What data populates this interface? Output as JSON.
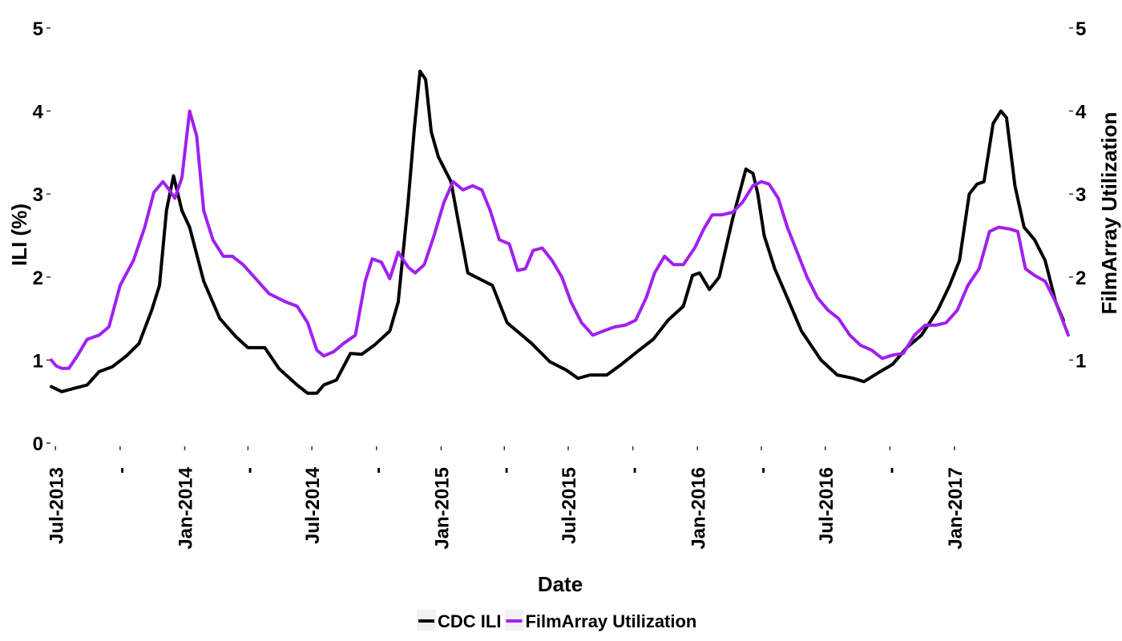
{
  "chart_data": {
    "type": "line",
    "xlabel": "Date",
    "ylabel": "ILI (%)",
    "y2label": "FilmArray Utilization",
    "ylim": [
      0,
      5
    ],
    "y2lim": [
      0,
      5
    ],
    "yticks": [
      "0",
      "1",
      "2",
      "3",
      "4",
      "5"
    ],
    "y2ticks": [
      "1",
      "2",
      "3",
      "4",
      "5"
    ],
    "xlim": [
      "2013-06-25",
      "2017-06-12"
    ],
    "xticks": [
      {
        "date": "2013-07-01",
        "label": "Jul-2013"
      },
      {
        "date": "2013-10-01",
        "label": "-"
      },
      {
        "date": "2014-01-01",
        "label": "Jan-2014"
      },
      {
        "date": "2014-04-01",
        "label": "-"
      },
      {
        "date": "2014-07-01",
        "label": "Jul-2014"
      },
      {
        "date": "2014-10-01",
        "label": "-"
      },
      {
        "date": "2015-01-01",
        "label": "Jan-2015"
      },
      {
        "date": "2015-04-01",
        "label": "-"
      },
      {
        "date": "2015-07-01",
        "label": "Jul-2015"
      },
      {
        "date": "2015-10-01",
        "label": "-"
      },
      {
        "date": "2016-01-01",
        "label": "Jan-2016"
      },
      {
        "date": "2016-04-01",
        "label": "-"
      },
      {
        "date": "2016-07-01",
        "label": "Jul-2016"
      },
      {
        "date": "2016-10-01",
        "label": "-"
      },
      {
        "date": "2017-01-01",
        "label": "Jan-2017"
      }
    ],
    "grid": false,
    "legend_position": "bottom",
    "series": [
      {
        "name": "CDC ILI",
        "color": "#000000",
        "axis": "left",
        "points": [
          [
            "2013-06-25",
            0.68
          ],
          [
            "2013-07-10",
            0.62
          ],
          [
            "2013-07-28",
            0.66
          ],
          [
            "2013-08-15",
            0.7
          ],
          [
            "2013-09-01",
            0.86
          ],
          [
            "2013-09-20",
            0.92
          ],
          [
            "2013-10-10",
            1.05
          ],
          [
            "2013-10-28",
            1.2
          ],
          [
            "2013-11-15",
            1.6
          ],
          [
            "2013-11-26",
            1.9
          ],
          [
            "2013-12-06",
            2.8
          ],
          [
            "2013-12-16",
            3.22
          ],
          [
            "2013-12-28",
            2.8
          ],
          [
            "2014-01-08",
            2.6
          ],
          [
            "2014-01-28",
            1.95
          ],
          [
            "2014-02-20",
            1.5
          ],
          [
            "2014-03-15",
            1.28
          ],
          [
            "2014-04-01",
            1.15
          ],
          [
            "2014-04-25",
            1.15
          ],
          [
            "2014-05-15",
            0.9
          ],
          [
            "2014-06-10",
            0.7
          ],
          [
            "2014-06-25",
            0.6
          ],
          [
            "2014-07-08",
            0.6
          ],
          [
            "2014-07-18",
            0.7
          ],
          [
            "2014-08-05",
            0.76
          ],
          [
            "2014-08-25",
            1.08
          ],
          [
            "2014-09-10",
            1.07
          ],
          [
            "2014-09-28",
            1.18
          ],
          [
            "2014-10-20",
            1.35
          ],
          [
            "2014-11-01",
            1.7
          ],
          [
            "2014-11-15",
            2.9
          ],
          [
            "2014-11-24",
            3.8
          ],
          [
            "2014-12-02",
            4.48
          ],
          [
            "2014-12-10",
            4.38
          ],
          [
            "2014-12-18",
            3.75
          ],
          [
            "2014-12-28",
            3.45
          ],
          [
            "2015-01-15",
            3.15
          ],
          [
            "2015-02-08",
            2.05
          ],
          [
            "2015-03-15",
            1.9
          ],
          [
            "2015-04-05",
            1.45
          ],
          [
            "2015-05-10",
            1.2
          ],
          [
            "2015-06-05",
            0.98
          ],
          [
            "2015-06-28",
            0.88
          ],
          [
            "2015-07-15",
            0.78
          ],
          [
            "2015-08-01",
            0.82
          ],
          [
            "2015-08-25",
            0.82
          ],
          [
            "2015-09-15",
            0.95
          ],
          [
            "2015-10-10",
            1.12
          ],
          [
            "2015-10-30",
            1.25
          ],
          [
            "2015-11-20",
            1.48
          ],
          [
            "2015-12-12",
            1.65
          ],
          [
            "2015-12-25",
            2.02
          ],
          [
            "2016-01-04",
            2.05
          ],
          [
            "2016-01-18",
            1.85
          ],
          [
            "2016-02-01",
            2.0
          ],
          [
            "2016-02-20",
            2.7
          ],
          [
            "2016-03-10",
            3.3
          ],
          [
            "2016-03-20",
            3.25
          ],
          [
            "2016-03-27",
            3.0
          ],
          [
            "2016-04-05",
            2.5
          ],
          [
            "2016-04-20",
            2.1
          ],
          [
            "2016-05-08",
            1.75
          ],
          [
            "2016-05-28",
            1.35
          ],
          [
            "2016-06-25",
            1.0
          ],
          [
            "2016-07-18",
            0.82
          ],
          [
            "2016-08-10",
            0.78
          ],
          [
            "2016-08-25",
            0.74
          ],
          [
            "2016-09-15",
            0.85
          ],
          [
            "2016-10-05",
            0.95
          ],
          [
            "2016-10-25",
            1.15
          ],
          [
            "2016-11-15",
            1.3
          ],
          [
            "2016-12-08",
            1.6
          ],
          [
            "2016-12-25",
            1.9
          ],
          [
            "2017-01-08",
            2.2
          ],
          [
            "2017-01-22",
            3.0
          ],
          [
            "2017-02-02",
            3.12
          ],
          [
            "2017-02-12",
            3.15
          ],
          [
            "2017-02-25",
            3.85
          ],
          [
            "2017-03-08",
            4.0
          ],
          [
            "2017-03-16",
            3.92
          ],
          [
            "2017-03-28",
            3.1
          ],
          [
            "2017-04-10",
            2.6
          ],
          [
            "2017-04-25",
            2.45
          ],
          [
            "2017-05-10",
            2.2
          ],
          [
            "2017-05-25",
            1.7
          ],
          [
            "2017-06-05",
            1.48
          ]
        ]
      },
      {
        "name": "FilmArray Utilization",
        "color": "#a020f0",
        "axis": "right",
        "points": [
          [
            "2013-06-25",
            1.0
          ],
          [
            "2013-07-02",
            0.93
          ],
          [
            "2013-07-10",
            0.9
          ],
          [
            "2013-07-20",
            0.9
          ],
          [
            "2013-08-01",
            1.05
          ],
          [
            "2013-08-15",
            1.25
          ],
          [
            "2013-09-01",
            1.3
          ],
          [
            "2013-09-15",
            1.4
          ],
          [
            "2013-10-01",
            1.9
          ],
          [
            "2013-10-20",
            2.2
          ],
          [
            "2013-11-05",
            2.6
          ],
          [
            "2013-11-18",
            3.02
          ],
          [
            "2013-12-01",
            3.15
          ],
          [
            "2013-12-10",
            3.05
          ],
          [
            "2013-12-18",
            2.95
          ],
          [
            "2013-12-28",
            3.2
          ],
          [
            "2014-01-08",
            4.0
          ],
          [
            "2014-01-18",
            3.7
          ],
          [
            "2014-01-28",
            2.8
          ],
          [
            "2014-02-10",
            2.45
          ],
          [
            "2014-02-25",
            2.25
          ],
          [
            "2014-03-10",
            2.25
          ],
          [
            "2014-03-25",
            2.15
          ],
          [
            "2014-04-10",
            2.0
          ],
          [
            "2014-05-01",
            1.8
          ],
          [
            "2014-05-25",
            1.7
          ],
          [
            "2014-06-10",
            1.65
          ],
          [
            "2014-06-25",
            1.45
          ],
          [
            "2014-07-08",
            1.12
          ],
          [
            "2014-07-18",
            1.05
          ],
          [
            "2014-08-01",
            1.1
          ],
          [
            "2014-08-15",
            1.2
          ],
          [
            "2014-09-01",
            1.3
          ],
          [
            "2014-09-15",
            1.95
          ],
          [
            "2014-09-25",
            2.22
          ],
          [
            "2014-10-08",
            2.18
          ],
          [
            "2014-10-20",
            1.98
          ],
          [
            "2014-11-01",
            2.3
          ],
          [
            "2014-11-15",
            2.12
          ],
          [
            "2014-11-25",
            2.05
          ],
          [
            "2014-12-08",
            2.15
          ],
          [
            "2014-12-22",
            2.5
          ],
          [
            "2015-01-05",
            2.9
          ],
          [
            "2015-01-18",
            3.15
          ],
          [
            "2015-02-01",
            3.05
          ],
          [
            "2015-02-15",
            3.1
          ],
          [
            "2015-02-28",
            3.05
          ],
          [
            "2015-03-12",
            2.8
          ],
          [
            "2015-03-25",
            2.45
          ],
          [
            "2015-04-08",
            2.4
          ],
          [
            "2015-04-20",
            2.08
          ],
          [
            "2015-05-01",
            2.1
          ],
          [
            "2015-05-12",
            2.32
          ],
          [
            "2015-05-25",
            2.35
          ],
          [
            "2015-06-08",
            2.2
          ],
          [
            "2015-06-22",
            2.0
          ],
          [
            "2015-07-05",
            1.7
          ],
          [
            "2015-07-20",
            1.45
          ],
          [
            "2015-08-05",
            1.3
          ],
          [
            "2015-08-20",
            1.35
          ],
          [
            "2015-09-05",
            1.4
          ],
          [
            "2015-09-20",
            1.42
          ],
          [
            "2015-10-05",
            1.48
          ],
          [
            "2015-10-20",
            1.75
          ],
          [
            "2015-11-01",
            2.05
          ],
          [
            "2015-11-15",
            2.25
          ],
          [
            "2015-11-28",
            2.15
          ],
          [
            "2015-12-12",
            2.15
          ],
          [
            "2015-12-28",
            2.35
          ],
          [
            "2016-01-10",
            2.58
          ],
          [
            "2016-01-22",
            2.75
          ],
          [
            "2016-02-05",
            2.75
          ],
          [
            "2016-02-20",
            2.78
          ],
          [
            "2016-03-05",
            2.9
          ],
          [
            "2016-03-20",
            3.1
          ],
          [
            "2016-04-01",
            3.15
          ],
          [
            "2016-04-12",
            3.12
          ],
          [
            "2016-04-25",
            2.95
          ],
          [
            "2016-05-08",
            2.6
          ],
          [
            "2016-05-22",
            2.3
          ],
          [
            "2016-06-05",
            2.0
          ],
          [
            "2016-06-20",
            1.75
          ],
          [
            "2016-07-05",
            1.6
          ],
          [
            "2016-07-20",
            1.5
          ],
          [
            "2016-08-05",
            1.3
          ],
          [
            "2016-08-20",
            1.18
          ],
          [
            "2016-09-05",
            1.12
          ],
          [
            "2016-09-20",
            1.02
          ],
          [
            "2016-10-05",
            1.06
          ],
          [
            "2016-10-20",
            1.08
          ],
          [
            "2016-11-05",
            1.3
          ],
          [
            "2016-11-20",
            1.42
          ],
          [
            "2016-12-05",
            1.42
          ],
          [
            "2016-12-20",
            1.45
          ],
          [
            "2017-01-05",
            1.6
          ],
          [
            "2017-01-20",
            1.9
          ],
          [
            "2017-02-05",
            2.1
          ],
          [
            "2017-02-20",
            2.55
          ],
          [
            "2017-03-05",
            2.6
          ],
          [
            "2017-03-20",
            2.58
          ],
          [
            "2017-04-01",
            2.55
          ],
          [
            "2017-04-12",
            2.1
          ],
          [
            "2017-04-25",
            2.02
          ],
          [
            "2017-05-10",
            1.95
          ],
          [
            "2017-05-25",
            1.7
          ],
          [
            "2017-06-12",
            1.3
          ]
        ]
      }
    ]
  }
}
